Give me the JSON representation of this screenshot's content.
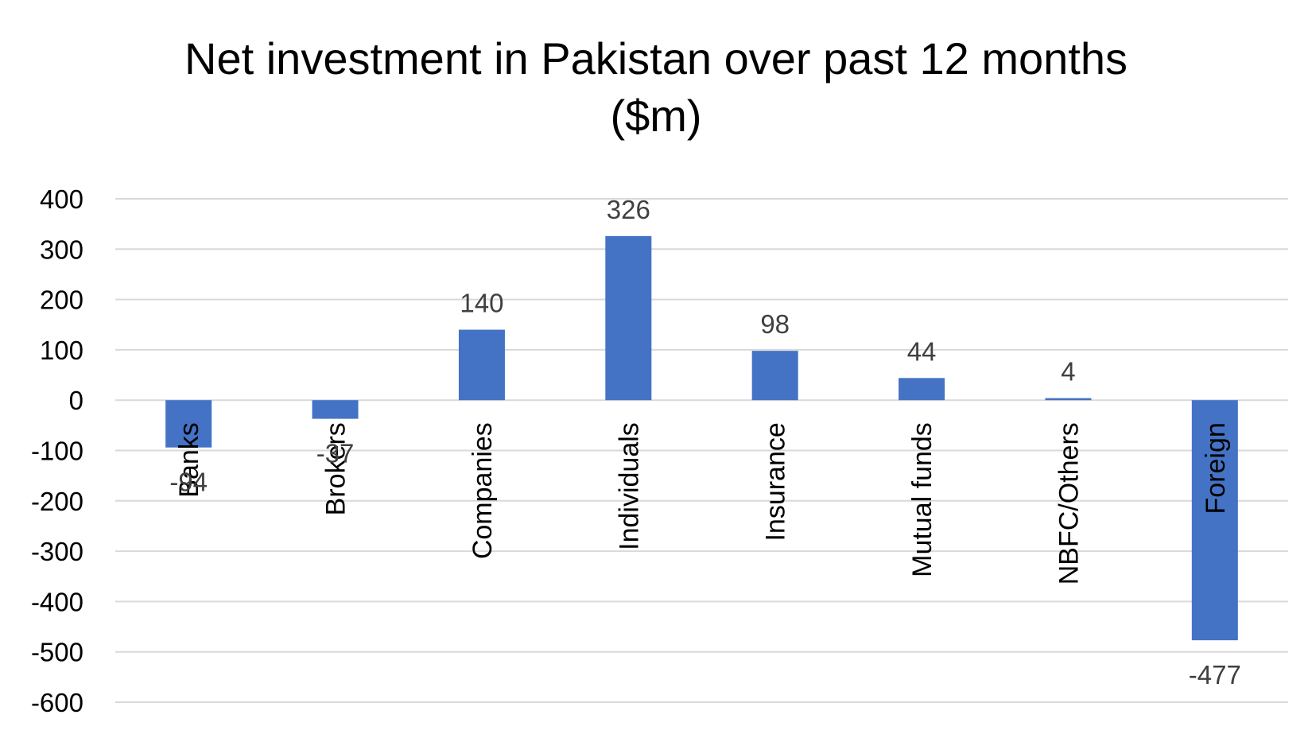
{
  "chart_data": {
    "type": "bar",
    "title_lines": [
      "Net investment in Pakistan over past 12 months",
      "($m)"
    ],
    "categories": [
      "Banks",
      "Brokers",
      "Companies",
      "Individuals",
      "Insurance",
      "Mutual funds",
      "NBFC/Others",
      "Foreign"
    ],
    "values": [
      -94,
      -37,
      140,
      326,
      98,
      44,
      4,
      -477
    ],
    "data_labels": [
      "-94",
      "-37",
      "140",
      "326",
      "98",
      "44",
      "4",
      "-477"
    ],
    "yticks": [
      400,
      300,
      200,
      100,
      0,
      -100,
      -200,
      -300,
      -400,
      -500,
      -600
    ],
    "ylim": [
      -600,
      400
    ],
    "xlabel": "",
    "ylabel": "",
    "grid": true,
    "legend": "none",
    "bar_color": "#4472C4",
    "grid_color": "#D9D9D9"
  }
}
